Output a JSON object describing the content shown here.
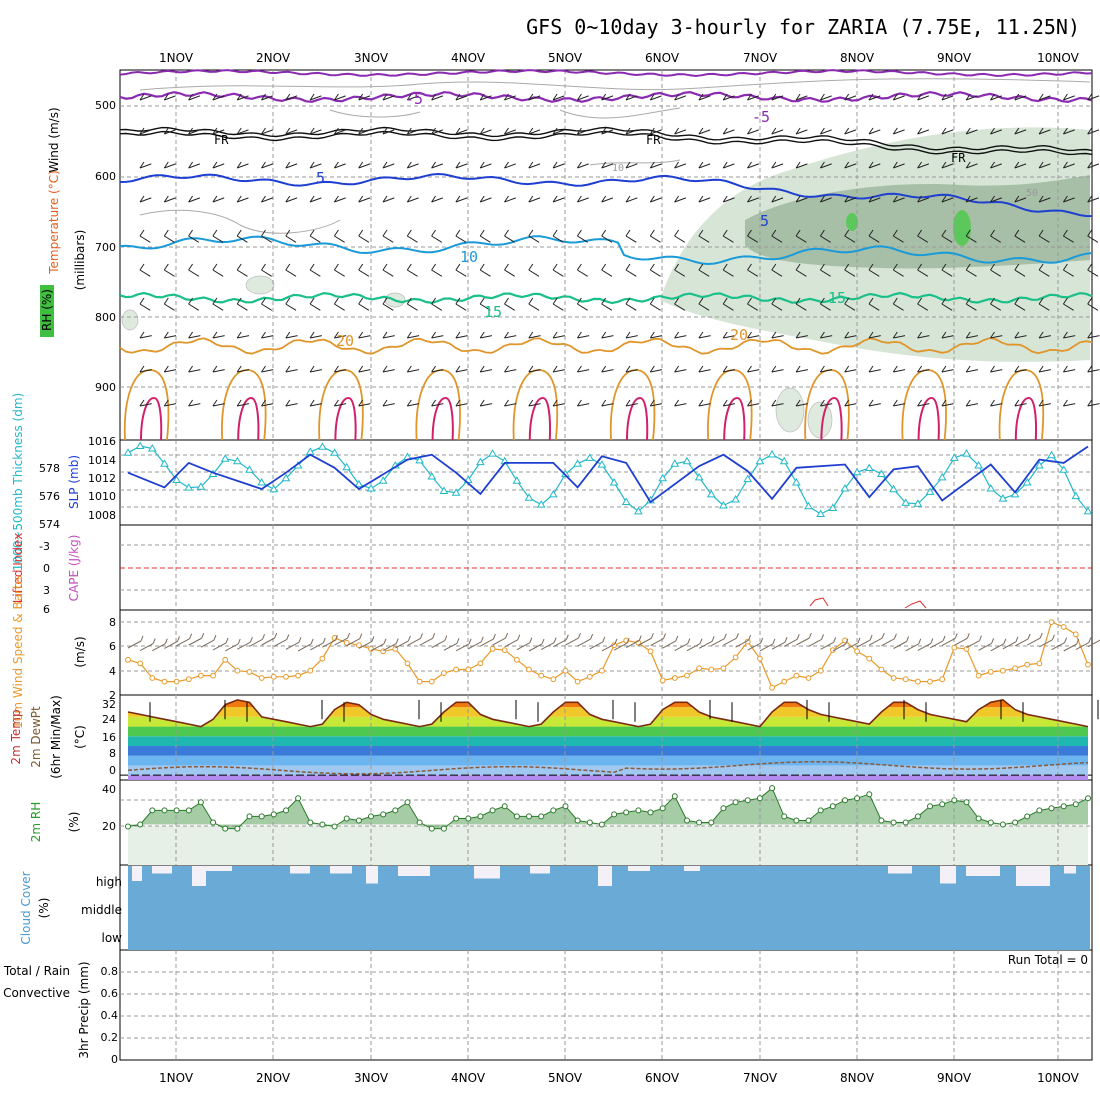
{
  "title": "GFS 0~10day 3-hourly for ZARIA (7.75E, 11.25N)",
  "dates": [
    "1NOV",
    "2NOV",
    "3NOV",
    "4NOV",
    "5NOV",
    "6NOV",
    "7NOV",
    "8NOV",
    "9NOV",
    "10NOV"
  ],
  "panels": {
    "upper": {
      "label_wind": "Wind (m/s)",
      "label_temp": "Temperature (°C)",
      "label_rh": "RH (%)",
      "label_millibars": "(millibars)",
      "y_ticks": [
        "500",
        "600",
        "700",
        "800",
        "900"
      ],
      "contour_labels": [
        "-5",
        "-5",
        "FR",
        "FR",
        "FR",
        "5",
        "5",
        "10",
        "15",
        "15",
        "20",
        "20",
        "10",
        "50"
      ]
    },
    "slp": {
      "label_thick": "1000~500mb Thickness (dm)",
      "label_slp": "SLP (mb)",
      "left_ticks": [
        "578",
        "576",
        "574"
      ],
      "right_ticks": [
        "1016",
        "1014",
        "1012",
        "1010",
        "1008"
      ]
    },
    "cape": {
      "label_li": "Lifted Index",
      "label_cape": "CAPE (J/kg)",
      "y_ticks": [
        "-3",
        "0",
        "3",
        "6"
      ]
    },
    "wind10": {
      "label": "10m Wind Speed & Barbs",
      "unit": "(m/s)",
      "y_ticks": [
        "8",
        "6",
        "4",
        "2"
      ]
    },
    "temp2m": {
      "label_a": "2m Temp",
      "label_b": "2m DewPt",
      "label_c": "(6hr Min/Max)",
      "unit": "(°C)",
      "y_ticks": [
        "32",
        "24",
        "16",
        "8",
        "0"
      ]
    },
    "rh2m": {
      "label": "2m RH",
      "unit": "(%)",
      "y_ticks": [
        "40",
        "20"
      ]
    },
    "cloud": {
      "label": "Cloud Cover",
      "unit": "(%)",
      "levels": [
        "high",
        "middle",
        "low"
      ]
    },
    "precip": {
      "label_a": "Total / Rain",
      "label_b": "Convective",
      "label_c": "3hr Precip (mm)",
      "run_total": "Run Total = 0",
      "y_ticks": [
        "0.8",
        "0.6",
        "0.4",
        "0.2",
        "0"
      ]
    }
  },
  "colors": {
    "thickness": "#1f3fd0",
    "slp": "#22b8c8",
    "wind10": "#e89a2a",
    "temp_line": "#7a2a10",
    "dew_line": "#8a5a3a",
    "rh_fill": "#8fbf8f",
    "cloud": "#6aaad6",
    "cape_line": "#e03030",
    "rh_shade": "#c8dcc8"
  },
  "chart_data": [
    {
      "type": "line",
      "title": "SLP (mb)",
      "ylim": [
        1006,
        1016
      ],
      "x": [
        0,
        1,
        2,
        3,
        4,
        5,
        6,
        7,
        8,
        9,
        10,
        11,
        12,
        13,
        14,
        15,
        16,
        17,
        18,
        19,
        20,
        21,
        22,
        23,
        24,
        25,
        26,
        27,
        28,
        29,
        30,
        31,
        32,
        33,
        34,
        35,
        36,
        37,
        38,
        39,
        40,
        41,
        42,
        43,
        44,
        45,
        46,
        47,
        48,
        49,
        50,
        51,
        52,
        53,
        54,
        55,
        56,
        57,
        58,
        59,
        60,
        61,
        62,
        63,
        64,
        65,
        66,
        67,
        68,
        69,
        70,
        71,
        72,
        73,
        74,
        75,
        76,
        77,
        78,
        79
      ],
      "values": [
        1014.5,
        1015.3,
        1015,
        1013.2,
        1011.3,
        1010.4,
        1010.5,
        1012,
        1013.8,
        1013.5,
        1012.5,
        1011,
        1010.2,
        1011.5,
        1013,
        1014.6,
        1015.2,
        1014.5,
        1012.8,
        1010.8,
        1010.3,
        1011.2,
        1013,
        1014,
        1013.6,
        1011.7,
        1010,
        1009.8,
        1011.3,
        1013.4,
        1014.4,
        1013.5,
        1011.2,
        1009.2,
        1008.4,
        1009.6,
        1012,
        1013.2,
        1013.9,
        1013.1,
        1011,
        1008.7,
        1007.6,
        1008.9,
        1011.5,
        1013.2,
        1013.5,
        1011.6,
        1009.6,
        1008.3,
        1009,
        1011.4,
        1013.5,
        1014.3,
        1013.5,
        1011,
        1008.2,
        1007.3,
        1008,
        1010.3,
        1012.2,
        1012.7,
        1012,
        1010.2,
        1008.6,
        1008.5,
        1009.9,
        1011.6,
        1013.9,
        1014.4,
        1013,
        1010.3,
        1009.1,
        1009.6,
        1011,
        1013,
        1014.2,
        1012.5,
        1009.4,
        1007.6
      ]
    },
    {
      "type": "line",
      "title": "1000~500mb Thickness (dm)",
      "ylim": [
        574,
        579.2
      ],
      "x": [
        0,
        3,
        5,
        7,
        11,
        13,
        15,
        17,
        19,
        23,
        25,
        27,
        29,
        31,
        35,
        37,
        39,
        41,
        43,
        47,
        49,
        51,
        53,
        55,
        59,
        61,
        63,
        65,
        67,
        71,
        73,
        75,
        77,
        79
      ],
      "values": [
        577.2,
        576.3,
        577.8,
        577.2,
        576.2,
        577.2,
        578.3,
        577.5,
        576.2,
        578,
        578.3,
        577.2,
        575.9,
        577.8,
        577.8,
        576.3,
        578.2,
        577.8,
        575.4,
        577.6,
        578.3,
        577.3,
        575.6,
        577.5,
        577.7,
        575.7,
        577.4,
        577.6,
        575.5,
        577.7,
        576,
        578,
        577.8,
        578.8
      ]
    },
    {
      "type": "line",
      "title": "10m Wind Speed & Barbs",
      "ylabel": "(m/s)",
      "ylim": [
        2,
        9
      ],
      "x": [
        0,
        1,
        2,
        3,
        4,
        5,
        6,
        7,
        8,
        9,
        10,
        11,
        12,
        13,
        14,
        15,
        16,
        17,
        18,
        19,
        20,
        21,
        22,
        23,
        24,
        25,
        26,
        27,
        28,
        29,
        30,
        31,
        32,
        33,
        34,
        35,
        36,
        37,
        38,
        39,
        40,
        41,
        42,
        43,
        44,
        45,
        46,
        47,
        48,
        49,
        50,
        51,
        52,
        53,
        54,
        55,
        56,
        57,
        58,
        59,
        60,
        61,
        62,
        63,
        64,
        65,
        66,
        67,
        68,
        69,
        70,
        71,
        72,
        73,
        74,
        75,
        76,
        77,
        78,
        79
      ],
      "values": [
        4.9,
        4.6,
        3.4,
        3.1,
        3.1,
        3.3,
        3.6,
        3.6,
        4.9,
        4.0,
        3.9,
        3.4,
        3.5,
        3.5,
        3.6,
        4.0,
        5.0,
        6.7,
        6.3,
        6.1,
        5.8,
        5.6,
        5.8,
        4.6,
        3.1,
        3.1,
        3.8,
        4.1,
        4.1,
        4.6,
        5.8,
        5.7,
        4.9,
        4.1,
        3.6,
        3.3,
        4.0,
        3.1,
        3.5,
        4.0,
        6.1,
        6.5,
        6.3,
        5.6,
        3.2,
        3.4,
        3.6,
        4.2,
        4.1,
        4.2,
        5.1,
        6.4,
        5.0,
        2.6,
        3.1,
        3.6,
        3.4,
        4.0,
        5.7,
        6.5,
        5.6,
        5.0,
        4.1,
        3.4,
        3.3,
        3.1,
        3.1,
        3.3,
        5.9,
        5.8,
        3.6,
        3.9,
        4.0,
        4.2,
        4.5,
        4.6,
        8.0,
        7.6,
        7.0,
        4.5
      ]
    },
    {
      "type": "area",
      "title": "2m Temp",
      "ylabel": "(°C)",
      "ylim": [
        -2,
        33
      ],
      "x": [
        0,
        1,
        2,
        3,
        4,
        5,
        6,
        7,
        8,
        9,
        10,
        11,
        12,
        13,
        14,
        15,
        16,
        17,
        18,
        19,
        20,
        21,
        22,
        23,
        24,
        25,
        26,
        27,
        28,
        29,
        30,
        31,
        32,
        33,
        34,
        35,
        36,
        37,
        38,
        39,
        40,
        41,
        42,
        43,
        44,
        45,
        46,
        47,
        48,
        49,
        50,
        51,
        52,
        53,
        54,
        55,
        56,
        57,
        58,
        59,
        60,
        61,
        62,
        63,
        64,
        65,
        66,
        67,
        68,
        69,
        70,
        71,
        72,
        73,
        74,
        75,
        76,
        77,
        78,
        79
      ],
      "values": [
        26,
        25,
        24,
        23,
        22,
        21,
        20,
        23,
        29,
        31,
        30,
        24,
        23,
        22,
        21,
        20,
        21,
        27,
        30,
        29,
        25,
        23,
        22,
        21,
        20,
        21,
        26,
        30,
        30,
        25,
        23,
        22,
        21,
        20,
        21,
        26,
        30,
        30,
        25,
        23,
        22,
        21,
        20,
        21,
        27,
        30,
        30,
        26,
        24,
        23,
        22,
        21,
        20,
        26,
        30,
        30,
        27,
        25,
        24,
        23,
        22,
        21,
        26,
        30,
        30,
        27,
        25,
        24,
        23,
        22,
        27,
        30,
        31,
        27,
        25,
        24,
        23,
        22,
        21,
        20
      ]
    },
    {
      "type": "area",
      "title": "2m RH",
      "ylabel": "(%)",
      "ylim": [
        0,
        42
      ],
      "x": [
        0,
        1,
        2,
        3,
        4,
        5,
        6,
        7,
        8,
        9,
        10,
        11,
        12,
        13,
        14,
        15,
        16,
        17,
        18,
        19,
        20,
        21,
        22,
        23,
        24,
        25,
        26,
        27,
        28,
        29,
        30,
        31,
        32,
        33,
        34,
        35,
        36,
        37,
        38,
        39,
        40,
        41,
        42,
        43,
        44,
        45,
        46,
        47,
        48,
        49,
        50,
        51,
        52,
        53,
        54,
        55,
        56,
        57,
        58,
        59,
        60,
        61,
        62,
        63,
        64,
        65,
        66,
        67,
        68,
        69,
        70,
        71,
        72,
        73,
        74,
        75,
        76,
        77,
        78,
        79
      ],
      "values": [
        19,
        20,
        27,
        27,
        27,
        27,
        31,
        21,
        18,
        18,
        24,
        24,
        25,
        27,
        33,
        21,
        20,
        19,
        23,
        22,
        24,
        25,
        27,
        31,
        21,
        18,
        18,
        23,
        23,
        24,
        27,
        29,
        24,
        24,
        24,
        27,
        29,
        22,
        21,
        20,
        25,
        26,
        27,
        26,
        28,
        34,
        22,
        21,
        21,
        28,
        31,
        32,
        33,
        38,
        24,
        22,
        22,
        27,
        29,
        32,
        33,
        35,
        22,
        21,
        21,
        24,
        29,
        30,
        32,
        31,
        23,
        21,
        20,
        21,
        24,
        27,
        28,
        29,
        30,
        33
      ]
    },
    {
      "type": "line",
      "title": "3hr Precip (mm)",
      "ylim": [
        0,
        1
      ],
      "x": [
        0,
        79
      ],
      "values": [
        0,
        0
      ]
    }
  ]
}
